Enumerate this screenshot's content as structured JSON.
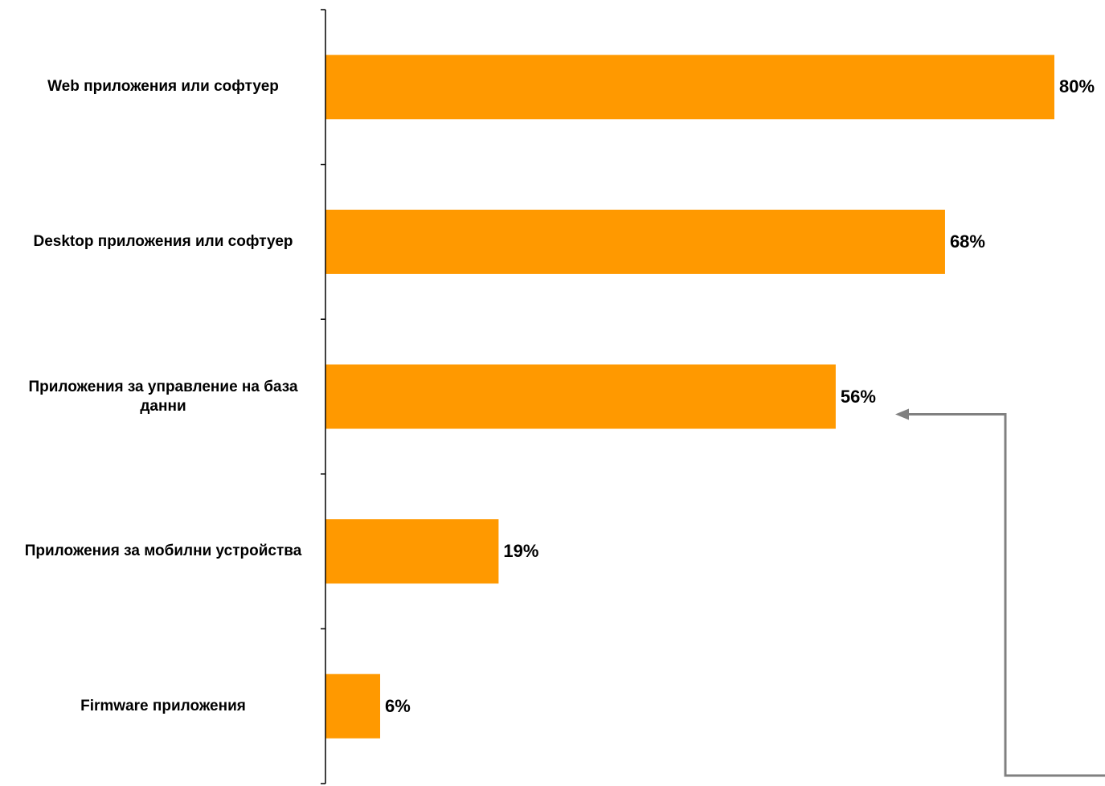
{
  "chart_data": {
    "type": "bar",
    "orientation": "horizontal",
    "categories": [
      "Web приложения или софтуер",
      "Desktop приложения или софтуер",
      "Приложения за управление на база данни",
      "Приложения за мобилни устройства",
      "Firmware приложения"
    ],
    "values": [
      80,
      68,
      56,
      19,
      6
    ],
    "value_labels": [
      "80%",
      "68%",
      "56%",
      "19%",
      "6%"
    ],
    "unit": "%",
    "xlim": [
      0,
      80
    ],
    "grid": false,
    "legend": "none",
    "title": "",
    "xlabel": "",
    "ylabel": "",
    "bar_color": "#FF9900",
    "axis_color": "#000000",
    "annotation_arrow_color": "#808080"
  }
}
